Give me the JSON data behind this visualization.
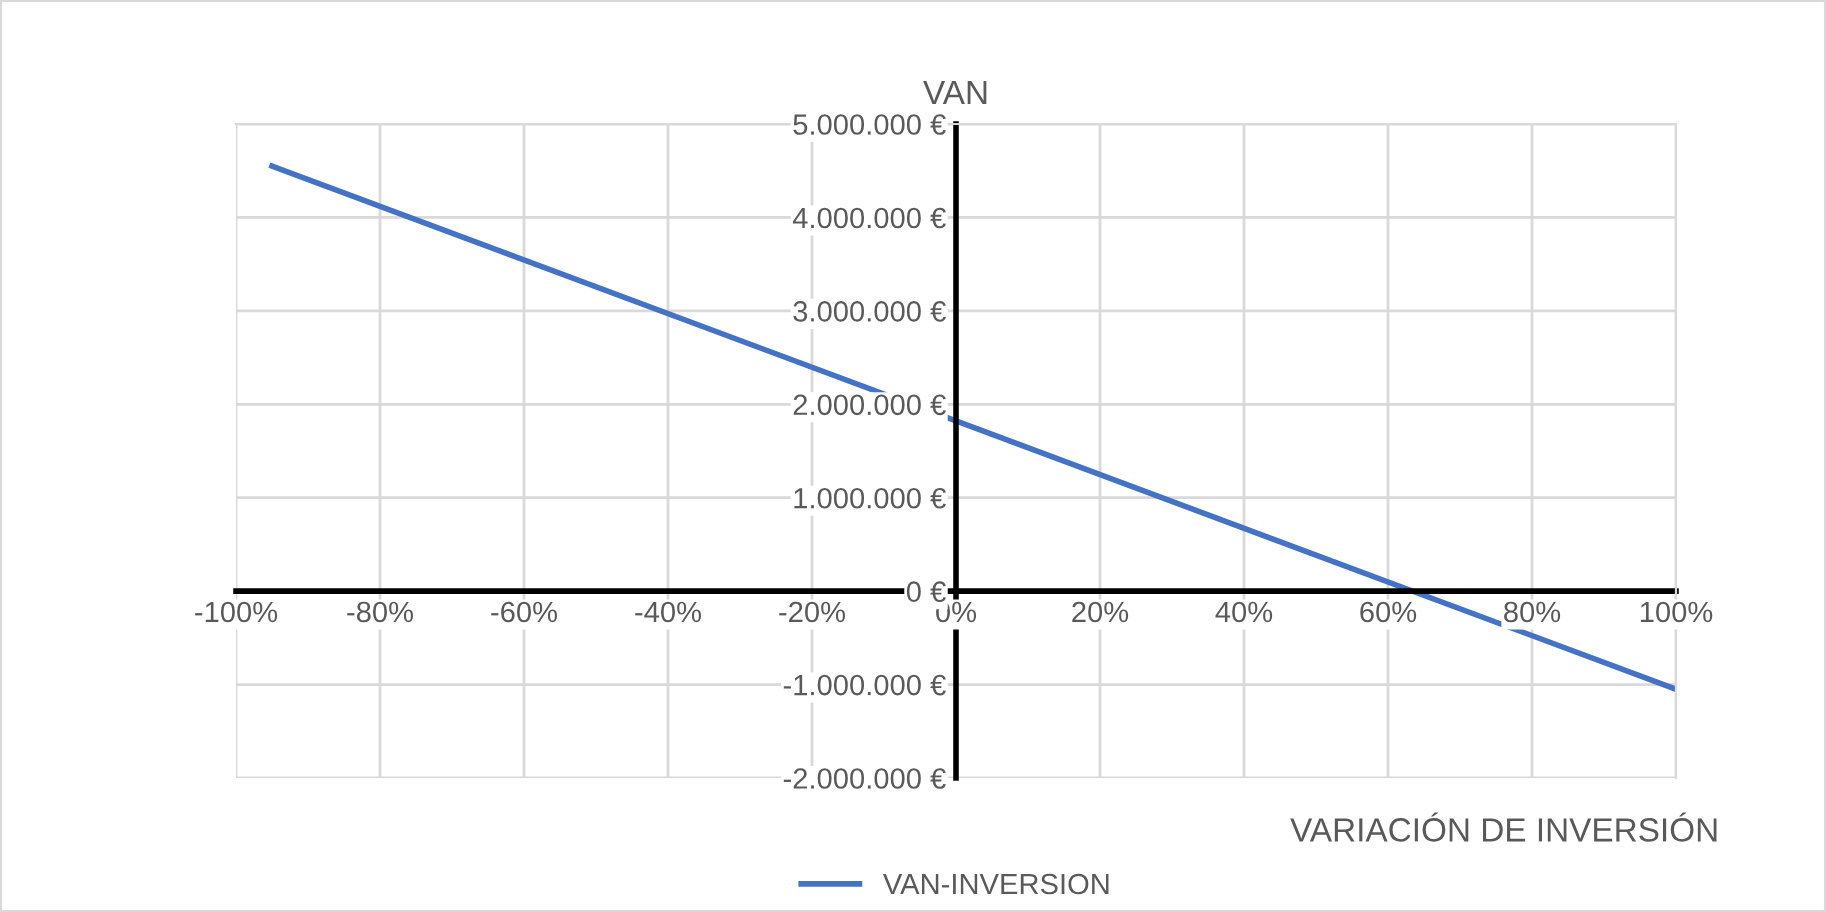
{
  "chart_data": {
    "type": "line",
    "xlabel": "VARIACIÓN DE INVERSIÓN",
    "ylabel": "VAN",
    "x": [
      -95,
      100
    ],
    "series": [
      {
        "name": "VAN-INVERSION",
        "color": "#4472c4",
        "values": [
          4550000,
          -1050000
        ]
      }
    ],
    "xlim": [
      -100,
      100
    ],
    "xticks": [
      {
        "value": -100,
        "label": "-100%"
      },
      {
        "value": -80,
        "label": "-80%"
      },
      {
        "value": -60,
        "label": "-60%"
      },
      {
        "value": -40,
        "label": "-40%"
      },
      {
        "value": -20,
        "label": "-20%"
      },
      {
        "value": 0,
        "label": "0%"
      },
      {
        "value": 20,
        "label": "20%"
      },
      {
        "value": 40,
        "label": "40%"
      },
      {
        "value": 60,
        "label": "60%"
      },
      {
        "value": 80,
        "label": "80%"
      },
      {
        "value": 100,
        "label": "100%"
      }
    ],
    "ylim": [
      -2000000,
      5000000
    ],
    "yticks": [
      {
        "value": -2000000,
        "label": "-2.000.000 €"
      },
      {
        "value": -1000000,
        "label": "-1.000.000 €"
      },
      {
        "value": 0,
        "label": "0 €"
      },
      {
        "value": 1000000,
        "label": "1.000.000 €"
      },
      {
        "value": 2000000,
        "label": "2.000.000 €"
      },
      {
        "value": 3000000,
        "label": "3.000.000 €"
      },
      {
        "value": 4000000,
        "label": "4.000.000 €"
      },
      {
        "value": 5000000,
        "label": "5.000.000 €"
      }
    ],
    "grid": true,
    "legend": "bottom",
    "marker": "none",
    "line_style": "solid"
  }
}
